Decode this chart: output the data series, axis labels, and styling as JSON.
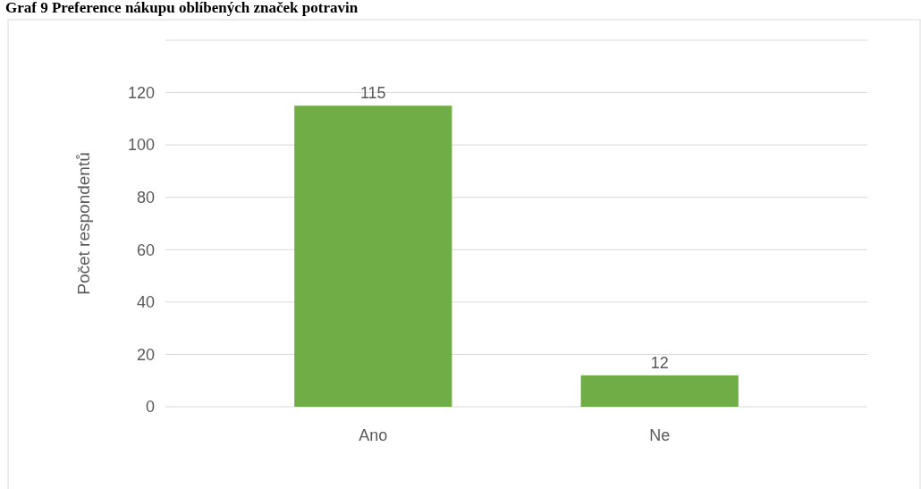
{
  "chart_data": {
    "type": "bar",
    "title": "Graf 9 Preference nákupu oblíbených značek potravin",
    "ylabel": "Počet respondentů",
    "categories": [
      "Ano",
      "Ne"
    ],
    "values": [
      115,
      12
    ],
    "color": "#70ad47",
    "ylim": [
      0,
      140
    ],
    "yticks": [
      0,
      20,
      40,
      60,
      80,
      100,
      120,
      {
        "value": 140,
        "label": null
      }
    ],
    "grid": true,
    "data_labels": true
  }
}
